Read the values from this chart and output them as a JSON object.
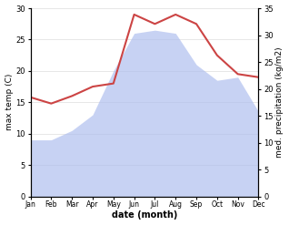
{
  "months": [
    "Jan",
    "Feb",
    "Mar",
    "Apr",
    "May",
    "Jun",
    "Jul",
    "Aug",
    "Sep",
    "Oct",
    "Nov",
    "Dec"
  ],
  "max_temp": [
    15.8,
    14.8,
    16.0,
    17.5,
    18.0,
    29.0,
    27.5,
    29.0,
    27.5,
    22.5,
    19.5,
    19.0
  ],
  "precipitation": [
    9.0,
    9.0,
    10.5,
    13.0,
    20.0,
    26.0,
    26.5,
    26.0,
    21.0,
    18.5,
    19.0,
    13.5
  ],
  "temp_color": "#cc4444",
  "precip_color": "#aabbee",
  "precip_fill_alpha": 0.65,
  "left_ylim": [
    0,
    30
  ],
  "right_ylim": [
    0,
    35
  ],
  "left_yticks": [
    0,
    5,
    10,
    15,
    20,
    25,
    30
  ],
  "right_yticks": [
    0,
    5,
    10,
    15,
    20,
    25,
    30,
    35
  ],
  "ylabel_left": "max temp (C)",
  "ylabel_right": "med. precipitation (kg/m2)",
  "xlabel": "date (month)",
  "bg_color": "#ffffff",
  "line_width": 1.5,
  "grid_color": "#dddddd"
}
